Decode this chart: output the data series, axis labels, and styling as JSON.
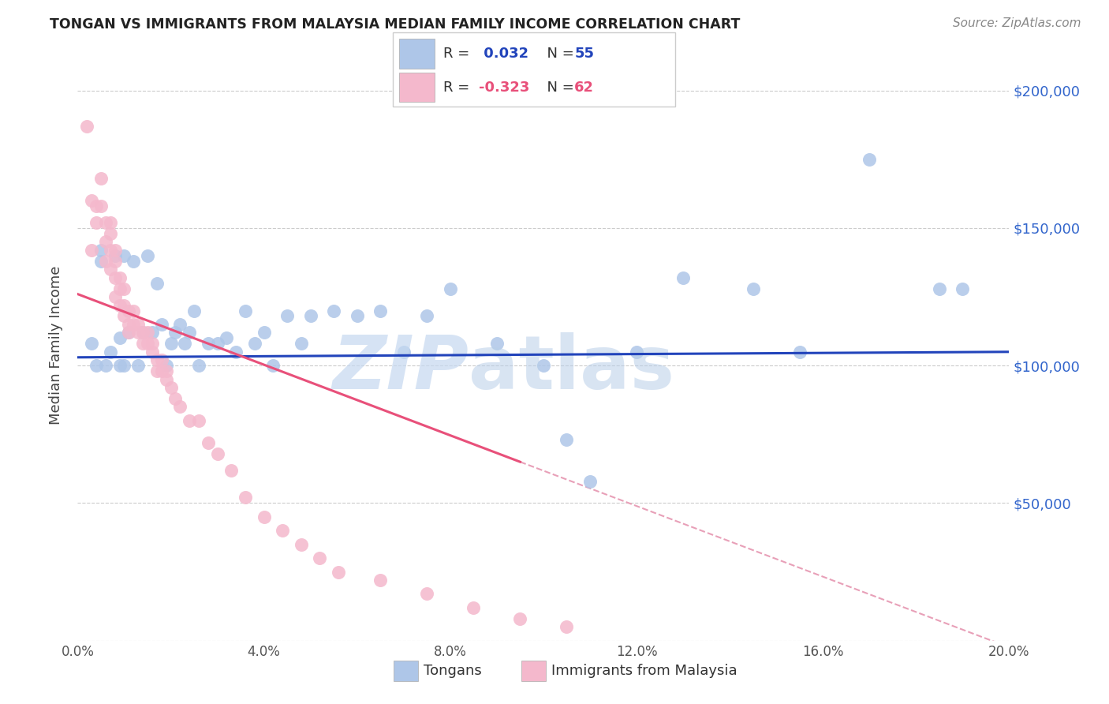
{
  "title": "TONGAN VS IMMIGRANTS FROM MALAYSIA MEDIAN FAMILY INCOME CORRELATION CHART",
  "source": "Source: ZipAtlas.com",
  "ylabel": "Median Family Income",
  "yticks": [
    0,
    50000,
    100000,
    150000,
    200000
  ],
  "ytick_labels": [
    "",
    "$50,000",
    "$100,000",
    "$150,000",
    "$200,000"
  ],
  "xlim": [
    0.0,
    0.2
  ],
  "ylim": [
    0,
    215000
  ],
  "blue_color": "#aec6e8",
  "pink_color": "#f4b8cc",
  "blue_line_color": "#2244bb",
  "pink_line_color": "#e8507a",
  "dashed_line_color": "#e8a0b8",
  "background_color": "#ffffff",
  "blue_scatter_x": [
    0.003,
    0.004,
    0.005,
    0.005,
    0.006,
    0.007,
    0.008,
    0.009,
    0.009,
    0.01,
    0.01,
    0.011,
    0.012,
    0.013,
    0.014,
    0.015,
    0.016,
    0.017,
    0.018,
    0.019,
    0.02,
    0.021,
    0.022,
    0.023,
    0.024,
    0.025,
    0.026,
    0.028,
    0.03,
    0.032,
    0.034,
    0.036,
    0.038,
    0.04,
    0.042,
    0.045,
    0.048,
    0.05,
    0.055,
    0.06,
    0.065,
    0.07,
    0.075,
    0.08,
    0.09,
    0.1,
    0.105,
    0.11,
    0.12,
    0.13,
    0.145,
    0.155,
    0.17,
    0.185,
    0.19
  ],
  "blue_scatter_y": [
    108000,
    100000,
    138000,
    142000,
    100000,
    105000,
    140000,
    100000,
    110000,
    140000,
    100000,
    112000,
    138000,
    100000,
    112000,
    140000,
    112000,
    130000,
    115000,
    100000,
    108000,
    112000,
    115000,
    108000,
    112000,
    120000,
    100000,
    108000,
    108000,
    110000,
    105000,
    120000,
    108000,
    112000,
    100000,
    118000,
    108000,
    118000,
    120000,
    118000,
    120000,
    105000,
    118000,
    128000,
    108000,
    100000,
    73000,
    58000,
    105000,
    132000,
    128000,
    105000,
    175000,
    128000,
    128000
  ],
  "pink_scatter_x": [
    0.002,
    0.003,
    0.003,
    0.004,
    0.004,
    0.005,
    0.005,
    0.006,
    0.006,
    0.006,
    0.007,
    0.007,
    0.007,
    0.007,
    0.008,
    0.008,
    0.008,
    0.008,
    0.009,
    0.009,
    0.009,
    0.01,
    0.01,
    0.01,
    0.011,
    0.011,
    0.011,
    0.012,
    0.012,
    0.013,
    0.013,
    0.014,
    0.014,
    0.015,
    0.015,
    0.016,
    0.016,
    0.017,
    0.017,
    0.018,
    0.018,
    0.019,
    0.019,
    0.02,
    0.021,
    0.022,
    0.024,
    0.026,
    0.028,
    0.03,
    0.033,
    0.036,
    0.04,
    0.044,
    0.048,
    0.052,
    0.056,
    0.065,
    0.075,
    0.085,
    0.095,
    0.105
  ],
  "pink_scatter_y": [
    187000,
    160000,
    142000,
    158000,
    152000,
    158000,
    168000,
    152000,
    145000,
    138000,
    152000,
    148000,
    142000,
    135000,
    142000,
    138000,
    132000,
    125000,
    132000,
    128000,
    122000,
    128000,
    122000,
    118000,
    120000,
    115000,
    112000,
    120000,
    115000,
    115000,
    112000,
    112000,
    108000,
    108000,
    112000,
    105000,
    108000,
    102000,
    98000,
    98000,
    102000,
    95000,
    98000,
    92000,
    88000,
    85000,
    80000,
    80000,
    72000,
    68000,
    62000,
    52000,
    45000,
    40000,
    35000,
    30000,
    25000,
    22000,
    17000,
    12000,
    8000,
    5000
  ]
}
